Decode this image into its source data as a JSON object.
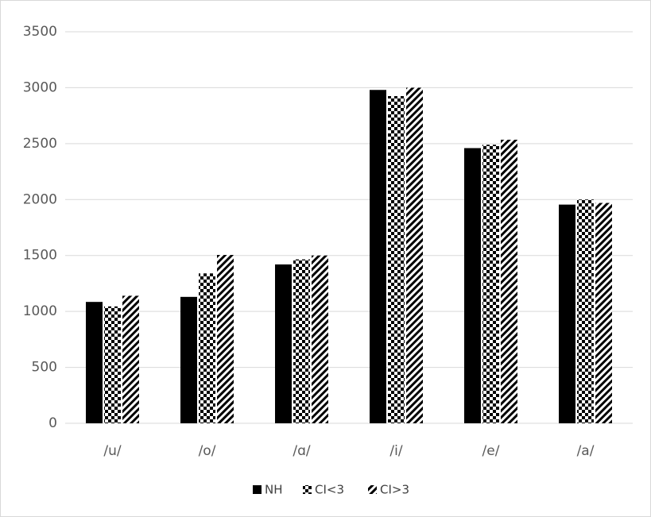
{
  "chart_data": {
    "type": "bar",
    "categories": [
      "/u/",
      "/o/",
      "/ɑ/",
      "/i/",
      "/e/",
      "/a/"
    ],
    "series": [
      {
        "name": "NH",
        "color": "#000000",
        "values": [
          1085,
          1130,
          1420,
          2980,
          2460,
          1955
        ]
      },
      {
        "name": "CI<3",
        "color": "#000000",
        "values": [
          1045,
          1340,
          1465,
          2925,
          2490,
          2000
        ]
      },
      {
        "name": "CI>3",
        "color": "#000000",
        "values": [
          1140,
          1505,
          1500,
          3000,
          2535,
          1970
        ]
      }
    ],
    "ylim": [
      0,
      3500
    ],
    "yticks": [
      0,
      500,
      1000,
      1500,
      2000,
      2500,
      3000,
      3500
    ],
    "grid": true,
    "legend": "bottom"
  }
}
